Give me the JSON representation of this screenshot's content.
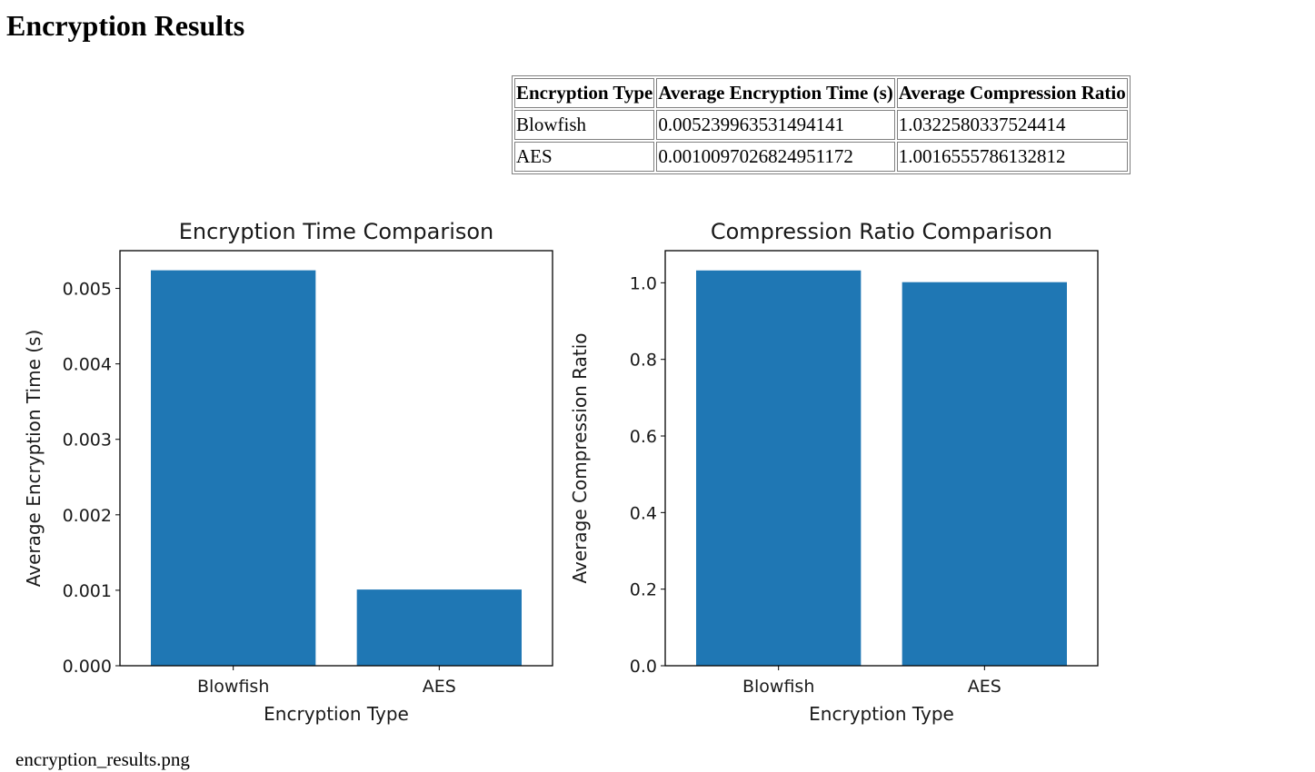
{
  "page": {
    "title": "Encryption Results",
    "image_caption": "encryption_results.png"
  },
  "table": {
    "headers": [
      "Encryption Type",
      "Average Encryption Time (s)",
      "Average Compression Ratio"
    ],
    "rows": [
      [
        "Blowfish",
        "0.005239963531494141",
        "1.0322580337524414"
      ],
      [
        "AES",
        "0.0010097026824951172",
        "1.0016555786132812"
      ]
    ]
  },
  "chart_data": [
    {
      "type": "bar",
      "title": "Encryption Time Comparison",
      "xlabel": "Encryption Type",
      "ylabel": "Average Encryption Time (s)",
      "categories": [
        "Blowfish",
        "AES"
      ],
      "values": [
        0.005239963531494141,
        0.0010097026824951172
      ],
      "ylim": [
        0,
        0.0055
      ],
      "yticks": [
        "0.000",
        "0.001",
        "0.002",
        "0.003",
        "0.004",
        "0.005"
      ],
      "ytick_values": [
        0,
        0.001,
        0.002,
        0.003,
        0.004,
        0.005
      ],
      "color": "#1f77b4",
      "grid": false
    },
    {
      "type": "bar",
      "title": "Compression Ratio Comparison",
      "xlabel": "Encryption Type",
      "ylabel": "Average Compression Ratio",
      "categories": [
        "Blowfish",
        "AES"
      ],
      "values": [
        1.0322580337524414,
        1.0016555786132812
      ],
      "ylim": [
        0,
        1.0838709354400635
      ],
      "yticks": [
        "0.0",
        "0.2",
        "0.4",
        "0.6",
        "0.8",
        "1.0"
      ],
      "ytick_values": [
        0,
        0.2,
        0.4,
        0.6,
        0.8,
        1.0
      ],
      "color": "#1f77b4",
      "grid": false
    }
  ]
}
